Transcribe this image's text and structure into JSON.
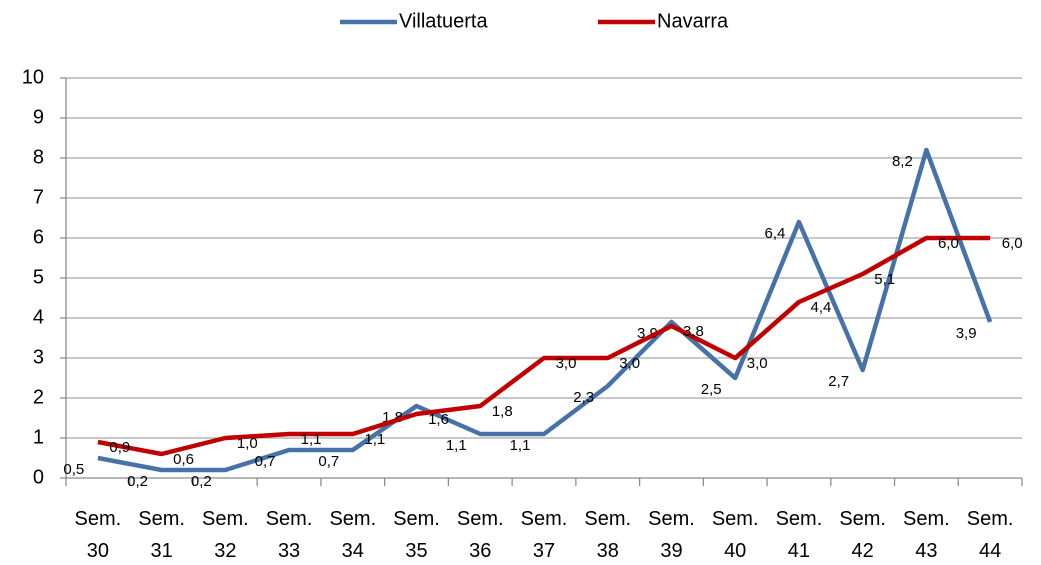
{
  "chart_data": {
    "type": "line",
    "categories": [
      "Sem. 30",
      "Sem. 31",
      "Sem. 32",
      "Sem. 33",
      "Sem. 34",
      "Sem. 35",
      "Sem. 36",
      "Sem. 37",
      "Sem. 38",
      "Sem. 39",
      "Sem. 40",
      "Sem. 41",
      "Sem. 42",
      "Sem. 43",
      "Sem. 44"
    ],
    "series": [
      {
        "name": "Villatuerta",
        "color": "#4672a8",
        "values": [
          0.5,
          0.2,
          0.2,
          0.7,
          0.7,
          1.8,
          1.1,
          1.1,
          2.3,
          3.9,
          2.5,
          6.4,
          2.7,
          8.2,
          3.9
        ],
        "value_labels": [
          "0,5",
          "0,2",
          "0,2",
          "0,7",
          "0,7",
          "1,8",
          "1,1",
          "1,1",
          "2,3",
          "3,9",
          "2,5",
          "6,4",
          "2,7",
          "8,2",
          "3,9"
        ]
      },
      {
        "name": "Navarra",
        "color": "#c00000",
        "values": [
          0.9,
          0.6,
          1.0,
          1.1,
          1.1,
          1.6,
          1.8,
          3.0,
          3.0,
          3.8,
          3.0,
          4.4,
          5.1,
          6.0,
          6.0
        ],
        "value_labels": [
          "0,9",
          "0,6",
          "1,0",
          "1,1",
          "1,1",
          "1,6",
          "1,8",
          "3,0",
          "3,0",
          "3,8",
          "3,0",
          "4,4",
          "5,1",
          "6,0",
          "6,0"
        ]
      }
    ],
    "ylim": [
      0,
      10
    ],
    "yticks": [
      0,
      1,
      2,
      3,
      4,
      5,
      6,
      7,
      8,
      9,
      10
    ],
    "grid": true,
    "legend": "top"
  }
}
